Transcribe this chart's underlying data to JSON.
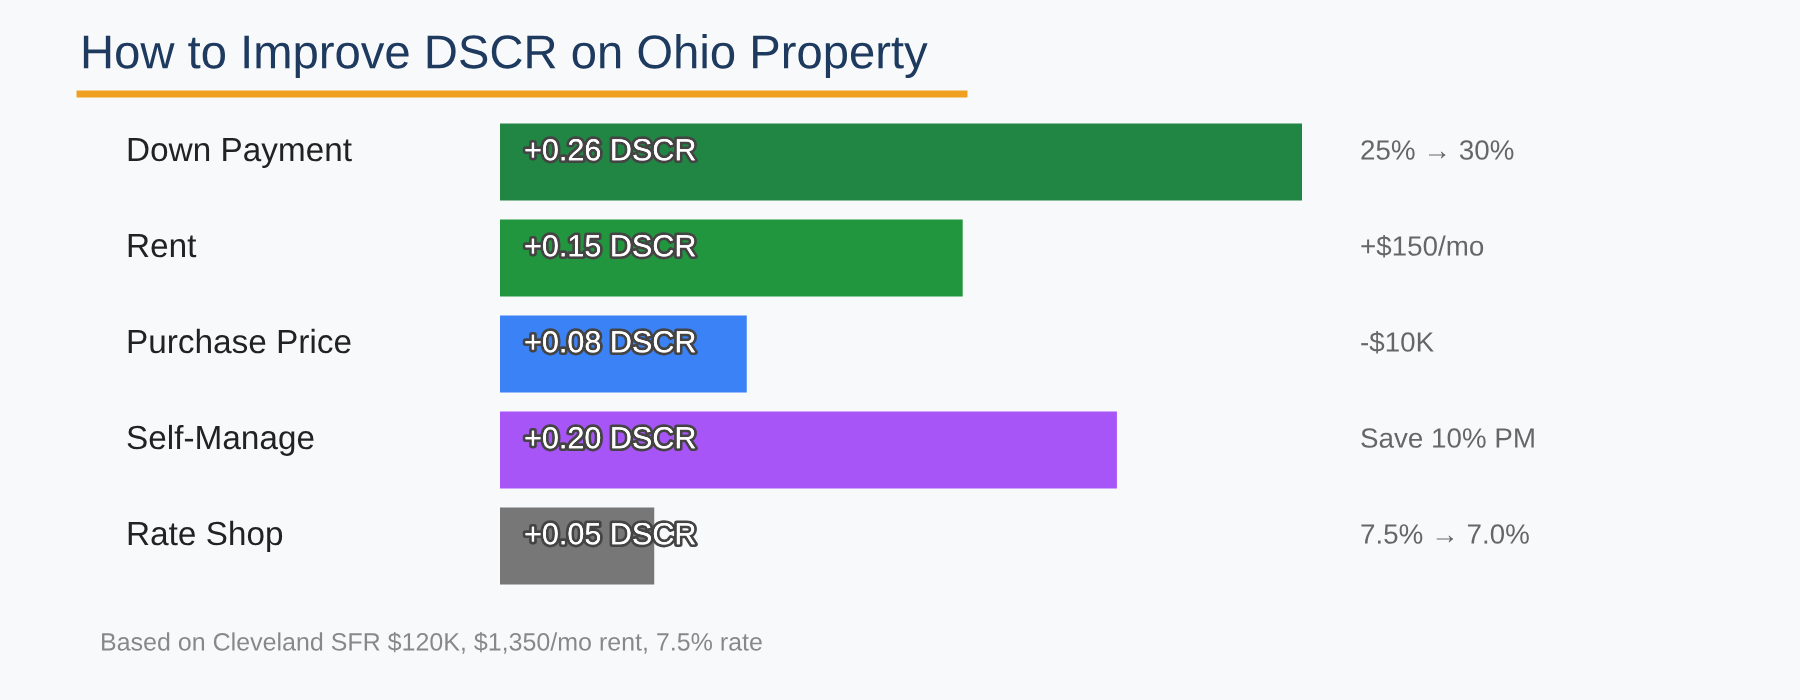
{
  "chart_data": {
    "type": "bar",
    "orientation": "horizontal",
    "title": "How to Improve DSCR on Ohio Property",
    "categories": [
      "Down Payment",
      "Rent",
      "Purchase Price",
      "Self-Manage",
      "Rate Shop"
    ],
    "values": [
      0.26,
      0.15,
      0.08,
      0.2,
      0.05
    ],
    "colors": [
      "#218543",
      "#22963f",
      "#3b82f6",
      "#a855f7",
      "#777777"
    ],
    "value_labels": [
      "+0.26 DSCR",
      "+0.15 DSCR",
      "+0.08 DSCR",
      "+0.20 DSCR",
      "+0.05 DSCR"
    ],
    "annotations": [
      "25% → 30%",
      "+$150/mo",
      "-$10K",
      "Save 10% PM",
      "7.5% → 7.0%",
      "Based on Cleveland SFR $120K, $1,350/mo rent, 7.5% rate"
    ]
  }
}
